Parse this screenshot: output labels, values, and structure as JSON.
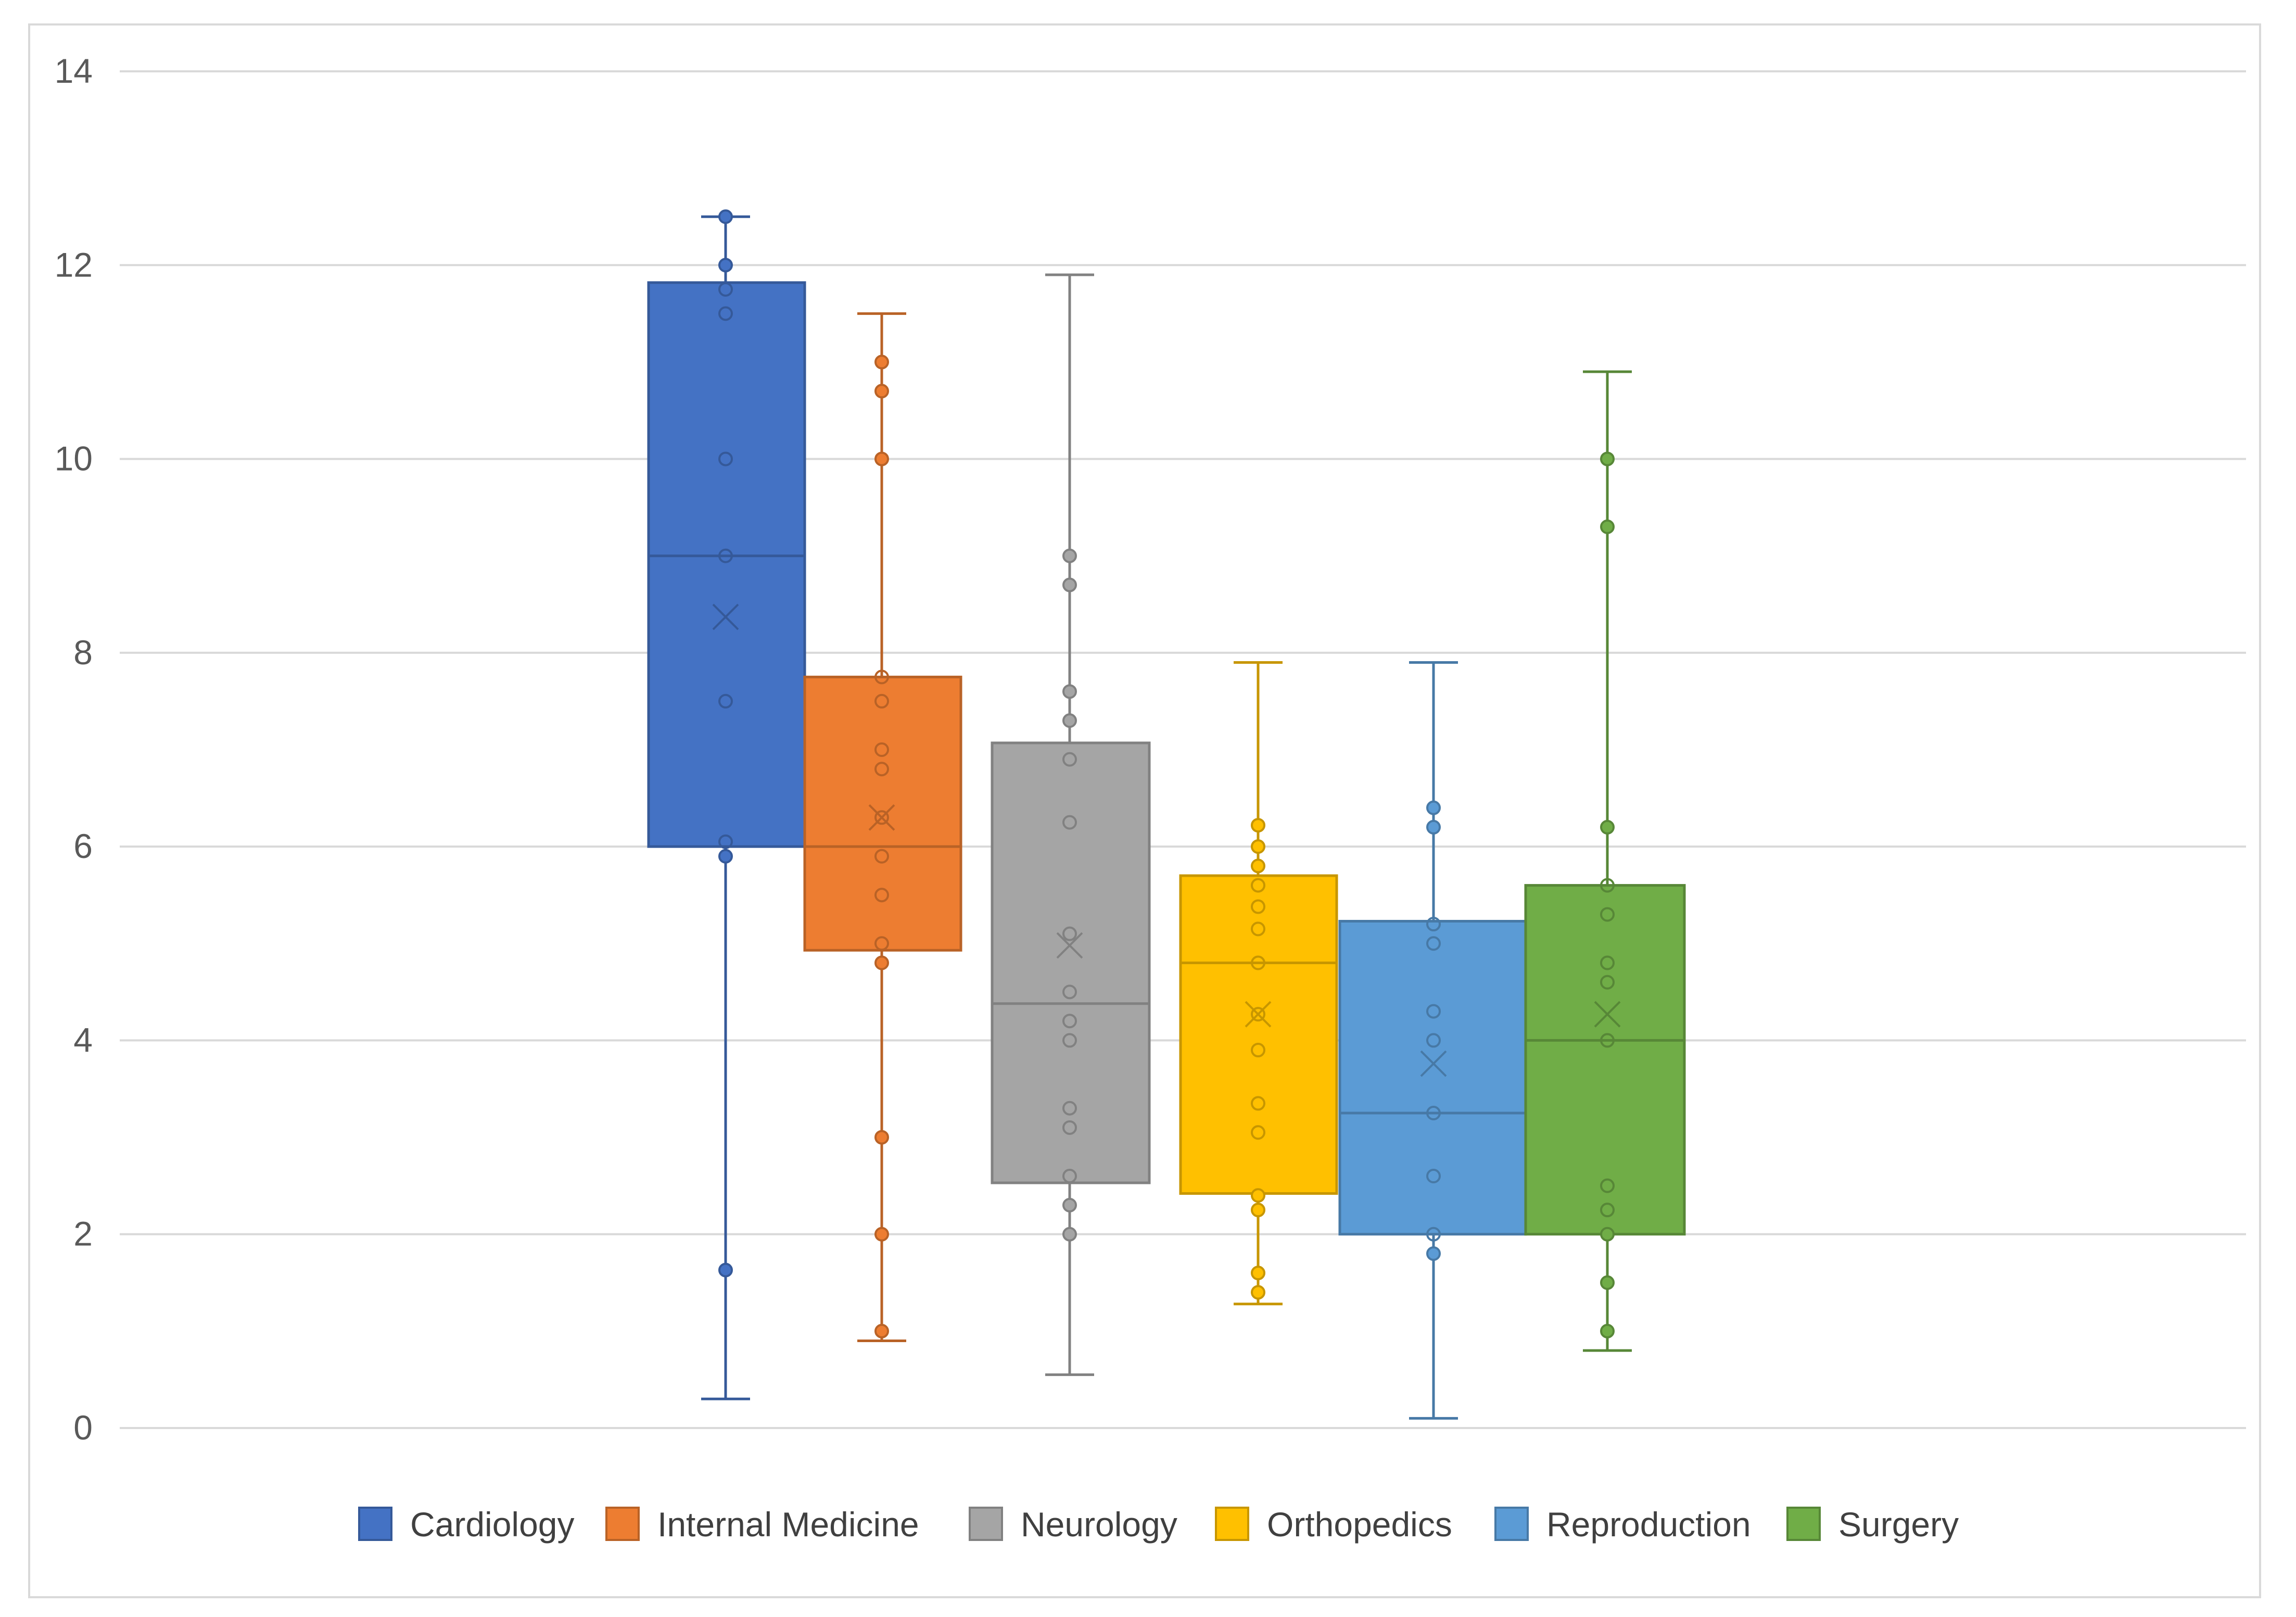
{
  "chart_data": {
    "type": "box",
    "title": "",
    "xlabel": "",
    "ylabel": "",
    "ylim": [
      0,
      14
    ],
    "yticks": [
      0,
      2,
      4,
      6,
      8,
      10,
      12,
      14
    ],
    "grid": true,
    "legend_position": "bottom",
    "series": [
      {
        "name": "Cardiology",
        "color": "#4472c4",
        "min": 0.3,
        "q1": 6.0,
        "median": 9.0,
        "q3": 11.82,
        "max": 12.5,
        "mean": 8.37,
        "points": [
          12.5,
          12.0,
          11.75,
          11.5,
          10.0,
          9.0,
          7.5,
          6.05,
          5.9,
          1.63
        ],
        "outlined_points": [
          12.5,
          12.0,
          5.9,
          1.63
        ]
      },
      {
        "name": "Internal Medicine",
        "color": "#ed7d31",
        "min": 0.9,
        "q1": 4.93,
        "median": 6.0,
        "q3": 7.75,
        "max": 11.5,
        "mean": 6.3,
        "points": [
          11.0,
          10.7,
          10.0,
          7.75,
          7.5,
          7.0,
          6.8,
          6.3,
          5.9,
          5.5,
          5.0,
          4.8,
          3.0,
          2.0,
          1.0
        ],
        "outlined_points": [
          11.0,
          10.7,
          10.0,
          4.8,
          3.0,
          2.0,
          1.0
        ]
      },
      {
        "name": "Neurology",
        "color": "#a5a5a5",
        "min": 0.55,
        "q1": 2.53,
        "median": 4.38,
        "q3": 7.07,
        "max": 11.9,
        "mean": 4.98,
        "points": [
          9.0,
          8.7,
          7.6,
          7.3,
          6.9,
          6.25,
          5.1,
          4.5,
          4.2,
          4.0,
          3.3,
          3.1,
          2.6,
          2.3,
          2.0
        ],
        "outlined_points": [
          9.0,
          8.7,
          7.6,
          7.3,
          2.3,
          2.0
        ]
      },
      {
        "name": "Orthopedics",
        "color": "#ffc000",
        "min": 1.28,
        "q1": 2.42,
        "median": 4.8,
        "q3": 5.7,
        "max": 7.9,
        "mean": 4.27,
        "points": [
          6.22,
          6.0,
          5.8,
          5.6,
          5.38,
          5.15,
          4.8,
          4.27,
          3.9,
          3.35,
          3.05,
          2.4,
          2.25,
          1.6,
          1.4
        ],
        "outlined_points": [
          6.22,
          6.0,
          5.8,
          2.4,
          2.25,
          1.6,
          1.4
        ]
      },
      {
        "name": "Reproduction",
        "color": "#5b9bd5",
        "min": 0.1,
        "q1": 2.0,
        "median": 3.25,
        "q3": 5.23,
        "max": 7.9,
        "mean": 3.76,
        "points": [
          6.4,
          6.2,
          5.2,
          5.0,
          4.3,
          4.0,
          3.25,
          2.6,
          2.0,
          1.8
        ],
        "outlined_points": [
          6.4,
          6.2,
          1.8
        ]
      },
      {
        "name": "Surgery",
        "color": "#70ad47",
        "min": 0.8,
        "q1": 2.0,
        "median": 4.0,
        "q3": 5.6,
        "max": 10.9,
        "mean": 4.27,
        "points": [
          10.0,
          9.3,
          6.2,
          5.6,
          5.3,
          4.8,
          4.6,
          4.0,
          2.5,
          2.25,
          2.0,
          1.5,
          1.0
        ],
        "outlined_points": [
          10.0,
          9.3,
          6.2,
          2.0,
          1.5,
          1.0
        ]
      }
    ]
  }
}
